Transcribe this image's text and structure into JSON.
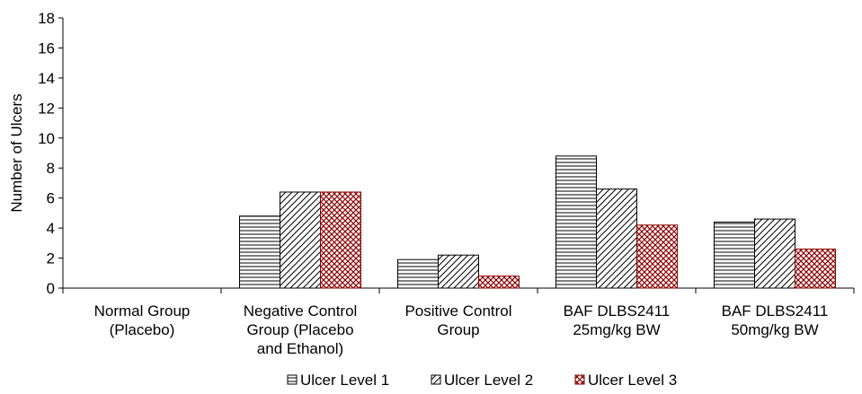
{
  "chart_data": {
    "type": "bar",
    "title": "",
    "xlabel": "",
    "ylabel": "Number of Ulcers",
    "ylim": [
      0,
      18
    ],
    "yticks": [
      0,
      2,
      4,
      6,
      8,
      10,
      12,
      14,
      16,
      18
    ],
    "grid": false,
    "legend_position": "bottom",
    "categories": [
      [
        "Normal Group",
        "(Placebo)"
      ],
      [
        "Negative Control",
        "Group (Placebo",
        "and Ethanol)"
      ],
      [
        "Positive Control",
        "Group"
      ],
      [
        "BAF DLBS2411",
        "25mg/kg BW"
      ],
      [
        "BAF DLBS2411",
        "50mg/kg BW"
      ]
    ],
    "series": [
      {
        "name": "Ulcer Level 1",
        "pattern": "horizontal-lines",
        "color": "#000000",
        "values": [
          0,
          4.8,
          1.9,
          8.8,
          4.4
        ]
      },
      {
        "name": "Ulcer Level 2",
        "pattern": "diagonal-lines",
        "color": "#000000",
        "values": [
          0,
          6.4,
          2.2,
          6.6,
          4.6
        ]
      },
      {
        "name": "Ulcer Level 3",
        "pattern": "crosshatch",
        "color": "#8b0000",
        "values": [
          0,
          6.4,
          0.8,
          4.2,
          2.6
        ]
      }
    ]
  }
}
